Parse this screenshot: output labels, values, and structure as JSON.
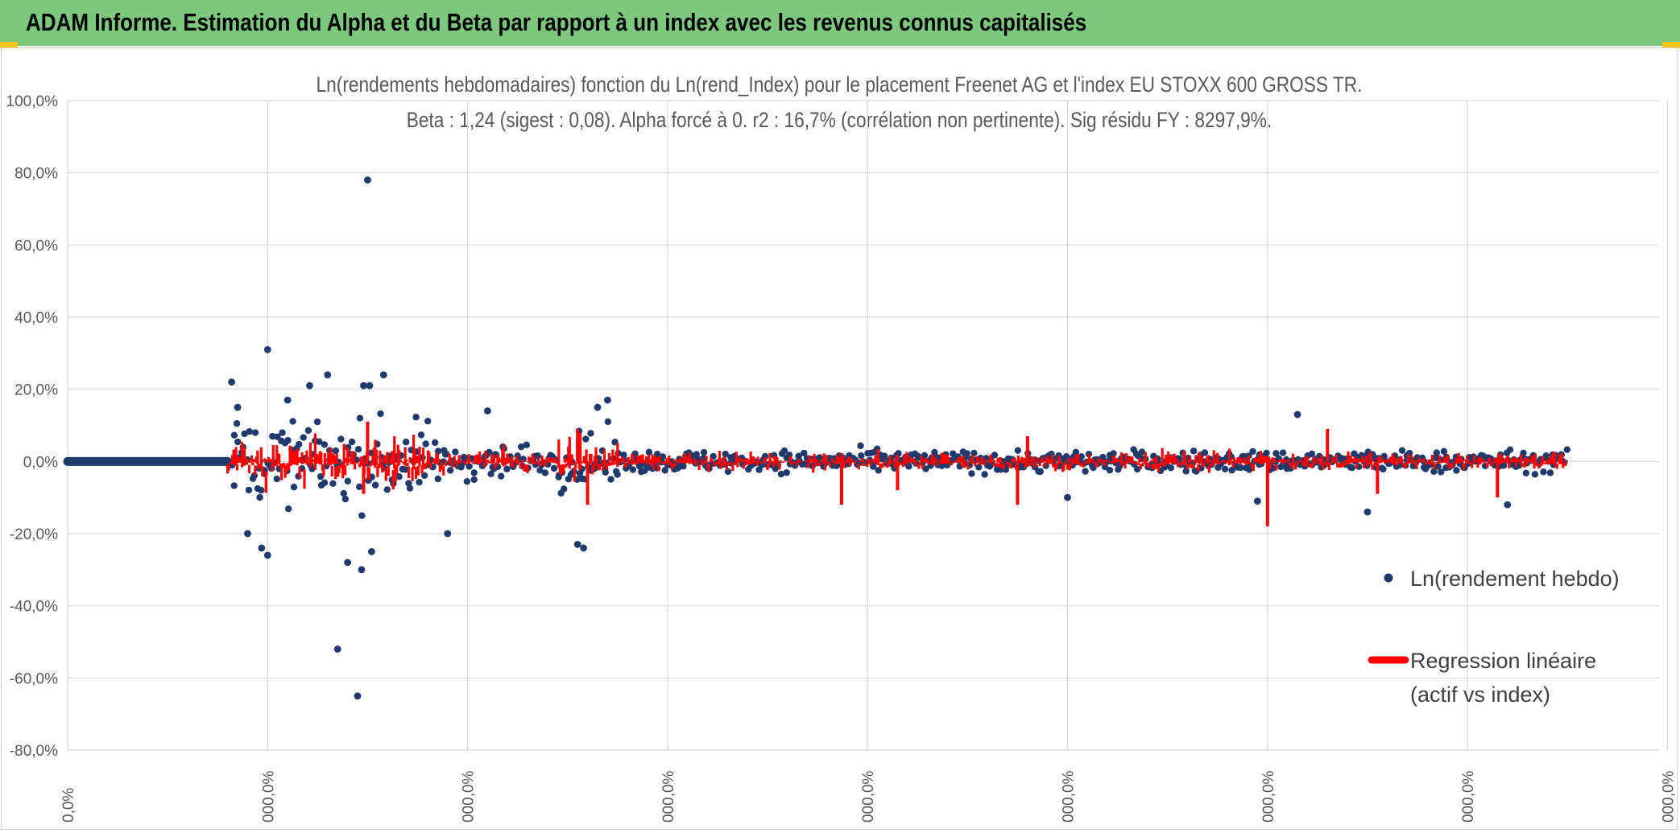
{
  "header": {
    "title": "ADAM Informe. Estimation du Alpha et du Beta par rapport à un index avec les revenus connus capitalisés"
  },
  "colors": {
    "banner": "#7dc77e",
    "points": "#1f3a6b",
    "regression": "#ff0000",
    "grid": "#d9d9d9"
  },
  "chart_data": {
    "type": "scatter",
    "title_line1": "Ln(rendements hebdomadaires) fonction du Ln(rend_Index) pour le placement Freenet AG et l'index EU STOXX 600 GROSS TR.",
    "title_line2": "Beta : 1,24 (sigest : 0,08). Alpha forcé à 0. r2 : 16,7% (corrélation non pertinente). Sig résidu FY : 8297,9%.",
    "ylim": [
      -80,
      100
    ],
    "y_ticks": [
      100,
      80,
      60,
      40,
      20,
      0,
      -20,
      -40,
      -60,
      -80
    ],
    "y_tick_labels": [
      "100,0%",
      "80,0%",
      "60,0%",
      "40,0%",
      "20,0%",
      "0,0%",
      "-20,0%",
      "-40,0%",
      "-60,0%",
      "-80,0%"
    ],
    "x_tick_labels": [
      "0,0%",
      "000,0%",
      "000,0%",
      "000,0%",
      "000,0%",
      "000,0%",
      "000,0%",
      "000,0%",
      "000,0%"
    ],
    "legend": {
      "position": "right",
      "series1": "Ln(rendement hebdo)",
      "series2_line1": "Regression linéaire",
      "series2_line2": "(actif vs index)"
    },
    "series": [
      {
        "name": "Ln(rendement hebdo)",
        "marker": "dot",
        "x_range": [
          0,
          7.5
        ],
        "flat_zero_until": 0.8,
        "outliers": [
          {
            "x": 1.5,
            "y": 78
          },
          {
            "x": 1.0,
            "y": 31
          },
          {
            "x": 0.82,
            "y": 22
          },
          {
            "x": 1.3,
            "y": 24
          },
          {
            "x": 1.58,
            "y": 24
          },
          {
            "x": 1.21,
            "y": 21
          },
          {
            "x": 1.48,
            "y": 21
          },
          {
            "x": 1.51,
            "y": 21
          },
          {
            "x": 1.1,
            "y": 17
          },
          {
            "x": 2.7,
            "y": 17
          },
          {
            "x": 0.85,
            "y": 15
          },
          {
            "x": 2.1,
            "y": 14
          },
          {
            "x": 2.65,
            "y": 15
          },
          {
            "x": 6.15,
            "y": 13
          },
          {
            "x": 0.9,
            "y": -20
          },
          {
            "x": 1.9,
            "y": -20
          },
          {
            "x": 1.0,
            "y": -26
          },
          {
            "x": 0.97,
            "y": -24
          },
          {
            "x": 1.4,
            "y": -28
          },
          {
            "x": 1.52,
            "y": -25
          },
          {
            "x": 1.47,
            "y": -30
          },
          {
            "x": 1.35,
            "y": -52
          },
          {
            "x": 1.45,
            "y": -65
          },
          {
            "x": 2.55,
            "y": -23
          },
          {
            "x": 2.58,
            "y": -24
          },
          {
            "x": 6.5,
            "y": -14
          },
          {
            "x": 7.2,
            "y": -12
          },
          {
            "x": 5.0,
            "y": -10
          },
          {
            "x": 5.95,
            "y": -11
          }
        ]
      },
      {
        "name": "Regression linéaire",
        "marker": "line",
        "beta": 1.24,
        "spikes": [
          {
            "x": 1.5,
            "y": 11
          },
          {
            "x": 1.48,
            "y": -9
          },
          {
            "x": 2.55,
            "y": 9
          },
          {
            "x": 2.6,
            "y": -12
          },
          {
            "x": 4.75,
            "y": -12
          },
          {
            "x": 4.8,
            "y": 7
          },
          {
            "x": 6.0,
            "y": -18
          },
          {
            "x": 6.3,
            "y": 9
          },
          {
            "x": 3.87,
            "y": -12
          },
          {
            "x": 4.15,
            "y": -8
          },
          {
            "x": 6.55,
            "y": -9
          },
          {
            "x": 7.15,
            "y": -10
          }
        ]
      }
    ]
  }
}
